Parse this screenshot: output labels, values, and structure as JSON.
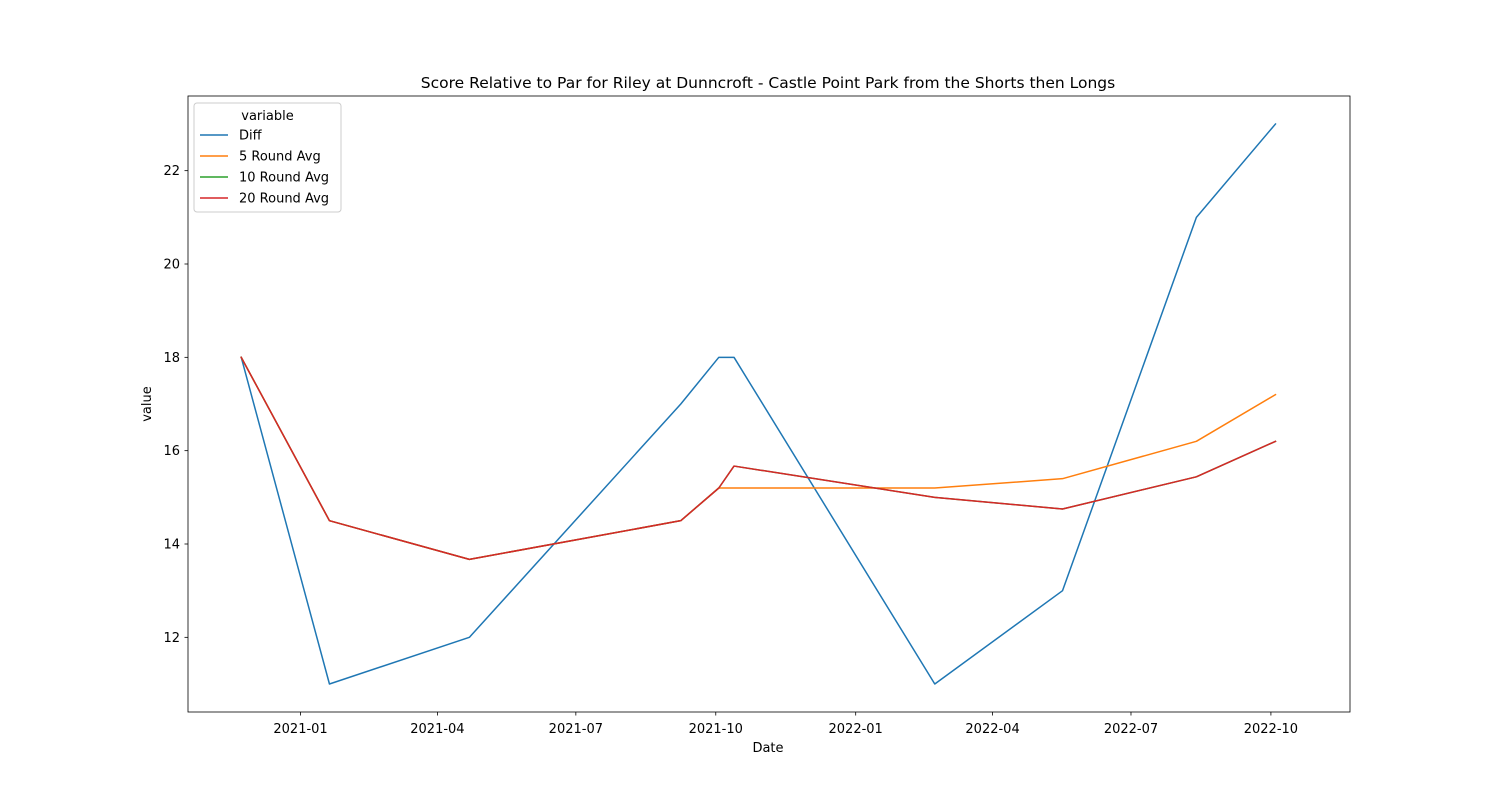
{
  "chart_data": {
    "type": "line",
    "title": "Score Relative to Par for Riley at Dunncroft - Castle Point Park from the Shorts then Longs",
    "xlabel": "Date",
    "ylabel": "value",
    "x_tick_labels": [
      "2021-01",
      "2021-04",
      "2021-07",
      "2021-10",
      "2022-01",
      "2022-04",
      "2022-07",
      "2022-10"
    ],
    "x_ticks": [
      "2021-01-01",
      "2021-04-01",
      "2021-07-01",
      "2021-10-01",
      "2022-01-01",
      "2022-04-01",
      "2022-07-01",
      "2022-10-01"
    ],
    "y_ticks": [
      12,
      14,
      16,
      18,
      20,
      22
    ],
    "xlim": [
      "2020-10-19",
      "2022-11-22"
    ],
    "ylim": [
      10.4,
      23.6
    ],
    "grid": false,
    "legend": {
      "title": "variable",
      "placement": "upper-left"
    },
    "series": [
      {
        "name": "Diff",
        "color": "#1f77b4",
        "points": [
          {
            "x": "2020-11-23",
            "y": 18
          },
          {
            "x": "2021-01-20",
            "y": 11
          },
          {
            "x": "2021-04-22",
            "y": 12
          },
          {
            "x": "2021-09-08",
            "y": 17
          },
          {
            "x": "2021-10-03",
            "y": 18
          },
          {
            "x": "2021-10-13",
            "y": 18
          },
          {
            "x": "2022-02-22",
            "y": 11
          },
          {
            "x": "2022-05-17",
            "y": 13
          },
          {
            "x": "2022-08-13",
            "y": 21
          },
          {
            "x": "2022-10-04",
            "y": 23
          }
        ]
      },
      {
        "name": "5 Round Avg",
        "color": "#ff7f0e",
        "points": [
          {
            "x": "2020-11-23",
            "y": 18
          },
          {
            "x": "2021-01-20",
            "y": 14.5
          },
          {
            "x": "2021-04-22",
            "y": 13.67
          },
          {
            "x": "2021-09-08",
            "y": 14.5
          },
          {
            "x": "2021-10-03",
            "y": 15.2
          },
          {
            "x": "2021-10-13",
            "y": 15.2
          },
          {
            "x": "2022-02-22",
            "y": 15.2
          },
          {
            "x": "2022-05-17",
            "y": 15.4
          },
          {
            "x": "2022-08-13",
            "y": 16.2
          },
          {
            "x": "2022-10-04",
            "y": 17.2
          }
        ]
      },
      {
        "name": "10 Round Avg",
        "color": "#2ca02c",
        "points": [
          {
            "x": "2020-11-23",
            "y": 18
          },
          {
            "x": "2021-01-20",
            "y": 14.5
          },
          {
            "x": "2021-04-22",
            "y": 13.67
          },
          {
            "x": "2021-09-08",
            "y": 14.5
          },
          {
            "x": "2021-10-03",
            "y": 15.2
          },
          {
            "x": "2021-10-13",
            "y": 15.67
          },
          {
            "x": "2022-02-22",
            "y": 15.0
          },
          {
            "x": "2022-05-17",
            "y": 14.75
          },
          {
            "x": "2022-08-13",
            "y": 15.44
          },
          {
            "x": "2022-10-04",
            "y": 16.2
          }
        ]
      },
      {
        "name": "20 Round Avg",
        "color": "#d62728",
        "points": [
          {
            "x": "2020-11-23",
            "y": 18
          },
          {
            "x": "2021-01-20",
            "y": 14.5
          },
          {
            "x": "2021-04-22",
            "y": 13.67
          },
          {
            "x": "2021-09-08",
            "y": 14.5
          },
          {
            "x": "2021-10-03",
            "y": 15.2
          },
          {
            "x": "2021-10-13",
            "y": 15.67
          },
          {
            "x": "2022-02-22",
            "y": 15.0
          },
          {
            "x": "2022-05-17",
            "y": 14.75
          },
          {
            "x": "2022-08-13",
            "y": 15.44
          },
          {
            "x": "2022-10-04",
            "y": 16.2
          }
        ]
      }
    ]
  }
}
